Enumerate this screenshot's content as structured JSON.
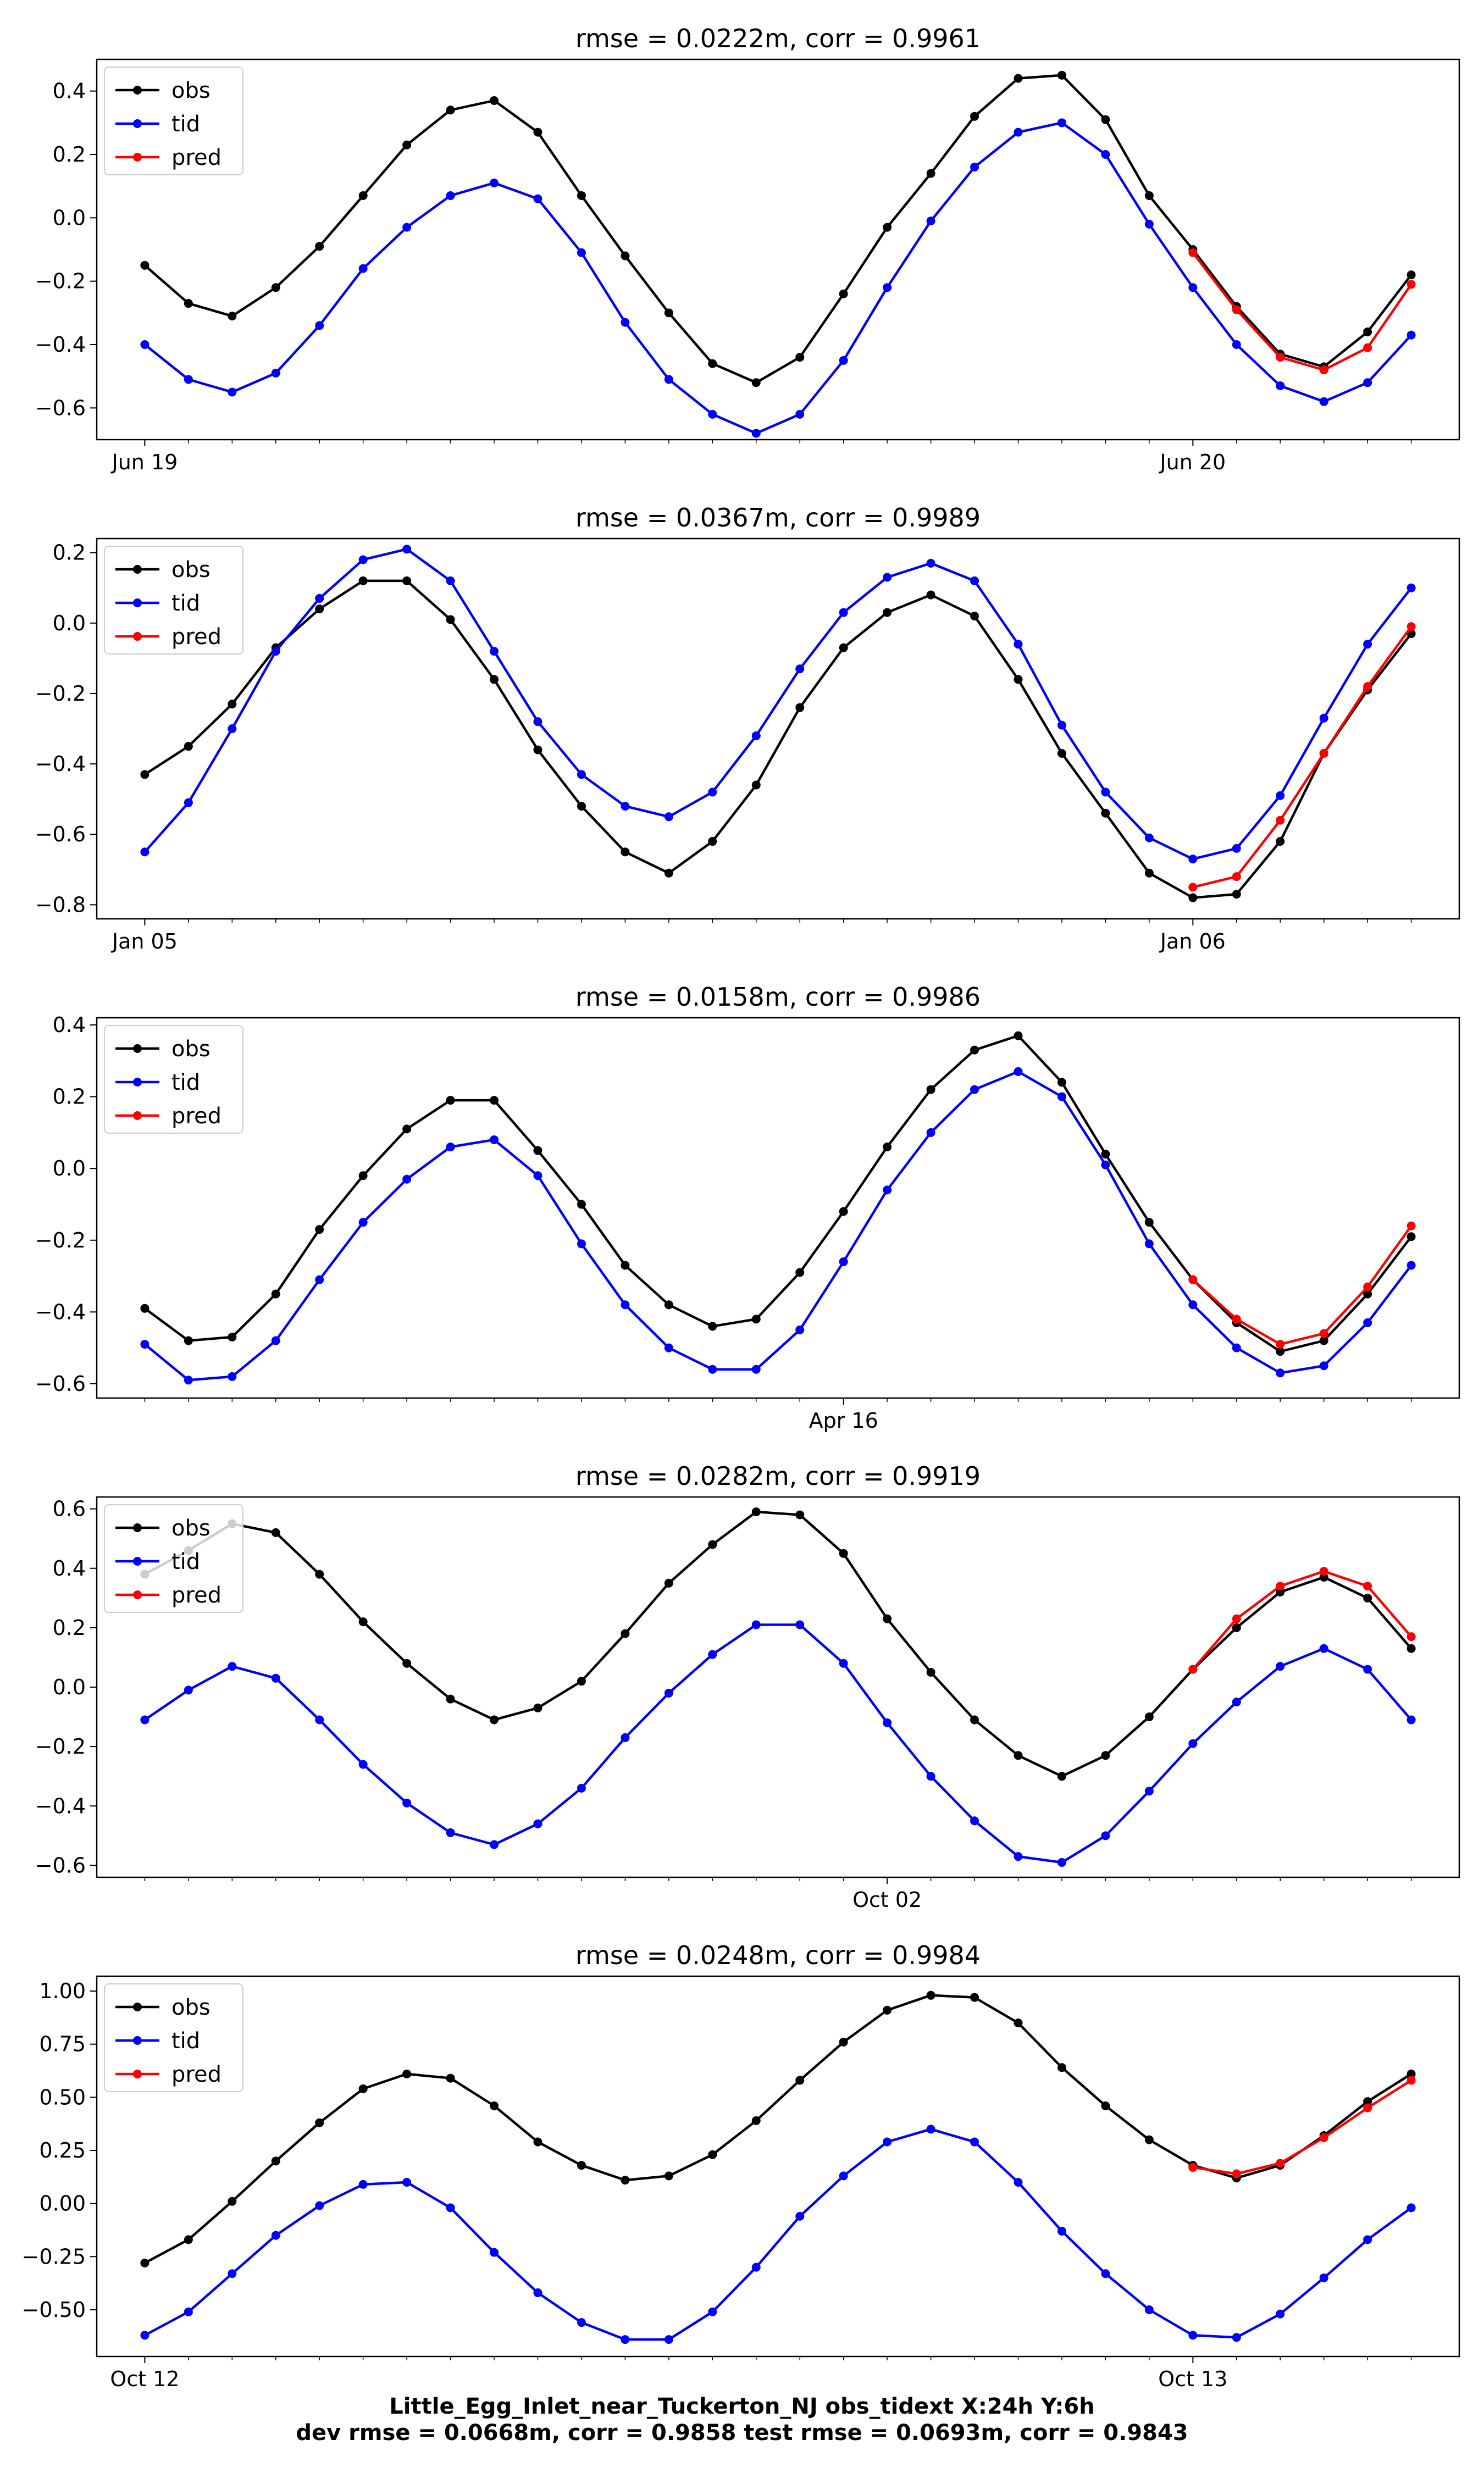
{
  "suptitle": {
    "line1": "Little_Egg_Inlet_near_Tuckerton_NJ   obs_tidext   X:24h   Y:6h",
    "line2": "dev rmse = 0.0668m, corr = 0.9858   test rmse = 0.0693m, corr = 0.9843"
  },
  "colors": {
    "obs": "#000000",
    "tid": "#0000ff",
    "pred": "#ff0000"
  },
  "chart_data": [
    {
      "type": "line",
      "title": "rmse = 0.0222m, corr = 0.9961",
      "ylim": [
        -0.7,
        0.5
      ],
      "yticks": [
        -0.6,
        -0.4,
        -0.2,
        0.0,
        0.2,
        0.4
      ],
      "ytick_labels": [
        "−0.6",
        "−0.4",
        "−0.2",
        "0.0",
        "0.2",
        "0.4"
      ],
      "major_ticks": [
        {
          "x": 0,
          "label": "Jun 19"
        },
        {
          "x": 24,
          "label": "Jun 20"
        }
      ],
      "legend_location": "upper left",
      "series": [
        {
          "name": "obs",
          "x_start": 0,
          "values": [
            -0.15,
            -0.27,
            -0.31,
            -0.22,
            -0.09,
            0.07,
            0.23,
            0.34,
            0.37,
            0.27,
            0.07,
            -0.12,
            -0.3,
            -0.46,
            -0.52,
            -0.44,
            -0.24,
            -0.03,
            0.14,
            0.32,
            0.44,
            0.45,
            0.31,
            0.07,
            -0.1,
            -0.28,
            -0.43,
            -0.47,
            -0.36,
            -0.18
          ]
        },
        {
          "name": "tid",
          "x_start": 0,
          "values": [
            -0.4,
            -0.51,
            -0.55,
            -0.49,
            -0.34,
            -0.16,
            -0.03,
            0.07,
            0.11,
            0.06,
            -0.11,
            -0.33,
            -0.51,
            -0.62,
            -0.68,
            -0.62,
            -0.45,
            -0.22,
            -0.01,
            0.16,
            0.27,
            0.3,
            0.2,
            -0.02,
            -0.22,
            -0.4,
            -0.53,
            -0.58,
            -0.52,
            -0.37
          ]
        },
        {
          "name": "pred",
          "x_start": 24,
          "values": [
            -0.11,
            -0.29,
            -0.44,
            -0.48,
            -0.41,
            -0.21
          ]
        }
      ]
    },
    {
      "type": "line",
      "title": "rmse = 0.0367m, corr = 0.9989",
      "ylim": [
        -0.84,
        0.24
      ],
      "yticks": [
        -0.8,
        -0.6,
        -0.4,
        -0.2,
        0.0,
        0.2
      ],
      "ytick_labels": [
        "−0.8",
        "−0.6",
        "−0.4",
        "−0.2",
        "0.0",
        "0.2"
      ],
      "major_ticks": [
        {
          "x": 0,
          "label": "Jan 05"
        },
        {
          "x": 24,
          "label": "Jan 06"
        }
      ],
      "legend_location": "upper left",
      "series": [
        {
          "name": "obs",
          "x_start": 0,
          "values": [
            -0.43,
            -0.35,
            -0.23,
            -0.07,
            0.04,
            0.12,
            0.12,
            0.01,
            -0.16,
            -0.36,
            -0.52,
            -0.65,
            -0.71,
            -0.62,
            -0.46,
            -0.24,
            -0.07,
            0.03,
            0.08,
            0.02,
            -0.16,
            -0.37,
            -0.54,
            -0.71,
            -0.78,
            -0.77,
            -0.62,
            -0.37,
            -0.19,
            -0.03
          ]
        },
        {
          "name": "tid",
          "x_start": 0,
          "values": [
            -0.65,
            -0.51,
            -0.3,
            -0.08,
            0.07,
            0.18,
            0.21,
            0.12,
            -0.08,
            -0.28,
            -0.43,
            -0.52,
            -0.55,
            -0.48,
            -0.32,
            -0.13,
            0.03,
            0.13,
            0.17,
            0.12,
            -0.06,
            -0.29,
            -0.48,
            -0.61,
            -0.67,
            -0.64,
            -0.49,
            -0.27,
            -0.06,
            0.1
          ]
        },
        {
          "name": "pred",
          "x_start": 24,
          "values": [
            -0.75,
            -0.72,
            -0.56,
            -0.37,
            -0.18,
            -0.01
          ]
        }
      ]
    },
    {
      "type": "line",
      "title": "rmse = 0.0158m, corr = 0.9986",
      "ylim": [
        -0.64,
        0.42
      ],
      "yticks": [
        -0.6,
        -0.4,
        -0.2,
        0.0,
        0.2,
        0.4
      ],
      "ytick_labels": [
        "−0.6",
        "−0.4",
        "−0.2",
        "0.0",
        "0.2",
        "0.4"
      ],
      "major_ticks": [
        {
          "x": 16,
          "label": "Apr 16"
        }
      ],
      "legend_location": "upper left",
      "series": [
        {
          "name": "obs",
          "x_start": 0,
          "values": [
            -0.39,
            -0.48,
            -0.47,
            -0.35,
            -0.17,
            -0.02,
            0.11,
            0.19,
            0.19,
            0.05,
            -0.1,
            -0.27,
            -0.38,
            -0.44,
            -0.42,
            -0.29,
            -0.12,
            0.06,
            0.22,
            0.33,
            0.37,
            0.24,
            0.04,
            -0.15,
            -0.31,
            -0.43,
            -0.51,
            -0.48,
            -0.35,
            -0.19
          ]
        },
        {
          "name": "tid",
          "x_start": 0,
          "values": [
            -0.49,
            -0.59,
            -0.58,
            -0.48,
            -0.31,
            -0.15,
            -0.03,
            0.06,
            0.08,
            -0.02,
            -0.21,
            -0.38,
            -0.5,
            -0.56,
            -0.56,
            -0.45,
            -0.26,
            -0.06,
            0.1,
            0.22,
            0.27,
            0.2,
            0.01,
            -0.21,
            -0.38,
            -0.5,
            -0.57,
            -0.55,
            -0.43,
            -0.27
          ]
        },
        {
          "name": "pred",
          "x_start": 24,
          "values": [
            -0.31,
            -0.42,
            -0.49,
            -0.46,
            -0.33,
            -0.16
          ]
        }
      ]
    },
    {
      "type": "line",
      "title": "rmse = 0.0282m, corr = 0.9919",
      "ylim": [
        -0.64,
        0.64
      ],
      "yticks": [
        -0.6,
        -0.4,
        -0.2,
        0.0,
        0.2,
        0.4,
        0.6
      ],
      "ytick_labels": [
        "−0.6",
        "−0.4",
        "−0.2",
        "0.0",
        "0.2",
        "0.4",
        "0.6"
      ],
      "major_ticks": [
        {
          "x": 17,
          "label": "Oct 02"
        }
      ],
      "legend_location": "upper left",
      "series": [
        {
          "name": "obs",
          "x_start": 0,
          "values": [
            0.38,
            0.46,
            0.55,
            0.52,
            0.38,
            0.22,
            0.08,
            -0.04,
            -0.11,
            -0.07,
            0.02,
            0.18,
            0.35,
            0.48,
            0.59,
            0.58,
            0.45,
            0.23,
            0.05,
            -0.11,
            -0.23,
            -0.3,
            -0.23,
            -0.1,
            0.06,
            0.2,
            0.32,
            0.37,
            0.3,
            0.13
          ]
        },
        {
          "name": "tid",
          "x_start": 0,
          "values": [
            -0.11,
            -0.01,
            0.07,
            0.03,
            -0.11,
            -0.26,
            -0.39,
            -0.49,
            -0.53,
            -0.46,
            -0.34,
            -0.17,
            -0.02,
            0.11,
            0.21,
            0.21,
            0.08,
            -0.12,
            -0.3,
            -0.45,
            -0.57,
            -0.59,
            -0.5,
            -0.35,
            -0.19,
            -0.05,
            0.07,
            0.13,
            0.06,
            -0.11
          ]
        },
        {
          "name": "pred",
          "x_start": 24,
          "values": [
            0.06,
            0.23,
            0.34,
            0.39,
            0.34,
            0.17
          ]
        }
      ]
    },
    {
      "type": "line",
      "title": "rmse = 0.0248m, corr = 0.9984",
      "ylim": [
        -0.72,
        1.07
      ],
      "yticks": [
        -0.5,
        -0.25,
        0.0,
        0.25,
        0.5,
        0.75,
        1.0
      ],
      "ytick_labels": [
        "−0.50",
        "−0.25",
        "0.00",
        "0.25",
        "0.50",
        "0.75",
        "1.00"
      ],
      "major_ticks": [
        {
          "x": 0,
          "label": "Oct 12"
        },
        {
          "x": 24,
          "label": "Oct 13"
        }
      ],
      "legend_location": "upper left",
      "series": [
        {
          "name": "obs",
          "x_start": 0,
          "values": [
            -0.28,
            -0.17,
            0.01,
            0.2,
            0.38,
            0.54,
            0.61,
            0.59,
            0.46,
            0.29,
            0.18,
            0.11,
            0.13,
            0.23,
            0.39,
            0.58,
            0.76,
            0.91,
            0.98,
            0.97,
            0.85,
            0.64,
            0.46,
            0.3,
            0.18,
            0.12,
            0.18,
            0.32,
            0.48,
            0.61
          ]
        },
        {
          "name": "tid",
          "x_start": 0,
          "values": [
            -0.62,
            -0.51,
            -0.33,
            -0.15,
            -0.01,
            0.09,
            0.1,
            -0.02,
            -0.23,
            -0.42,
            -0.56,
            -0.64,
            -0.64,
            -0.51,
            -0.3,
            -0.06,
            0.13,
            0.29,
            0.35,
            0.29,
            0.1,
            -0.13,
            -0.33,
            -0.5,
            -0.62,
            -0.63,
            -0.52,
            -0.35,
            -0.17,
            -0.02
          ]
        },
        {
          "name": "pred",
          "x_start": 24,
          "values": [
            0.17,
            0.14,
            0.19,
            0.31,
            0.45,
            0.58
          ]
        }
      ]
    }
  ]
}
